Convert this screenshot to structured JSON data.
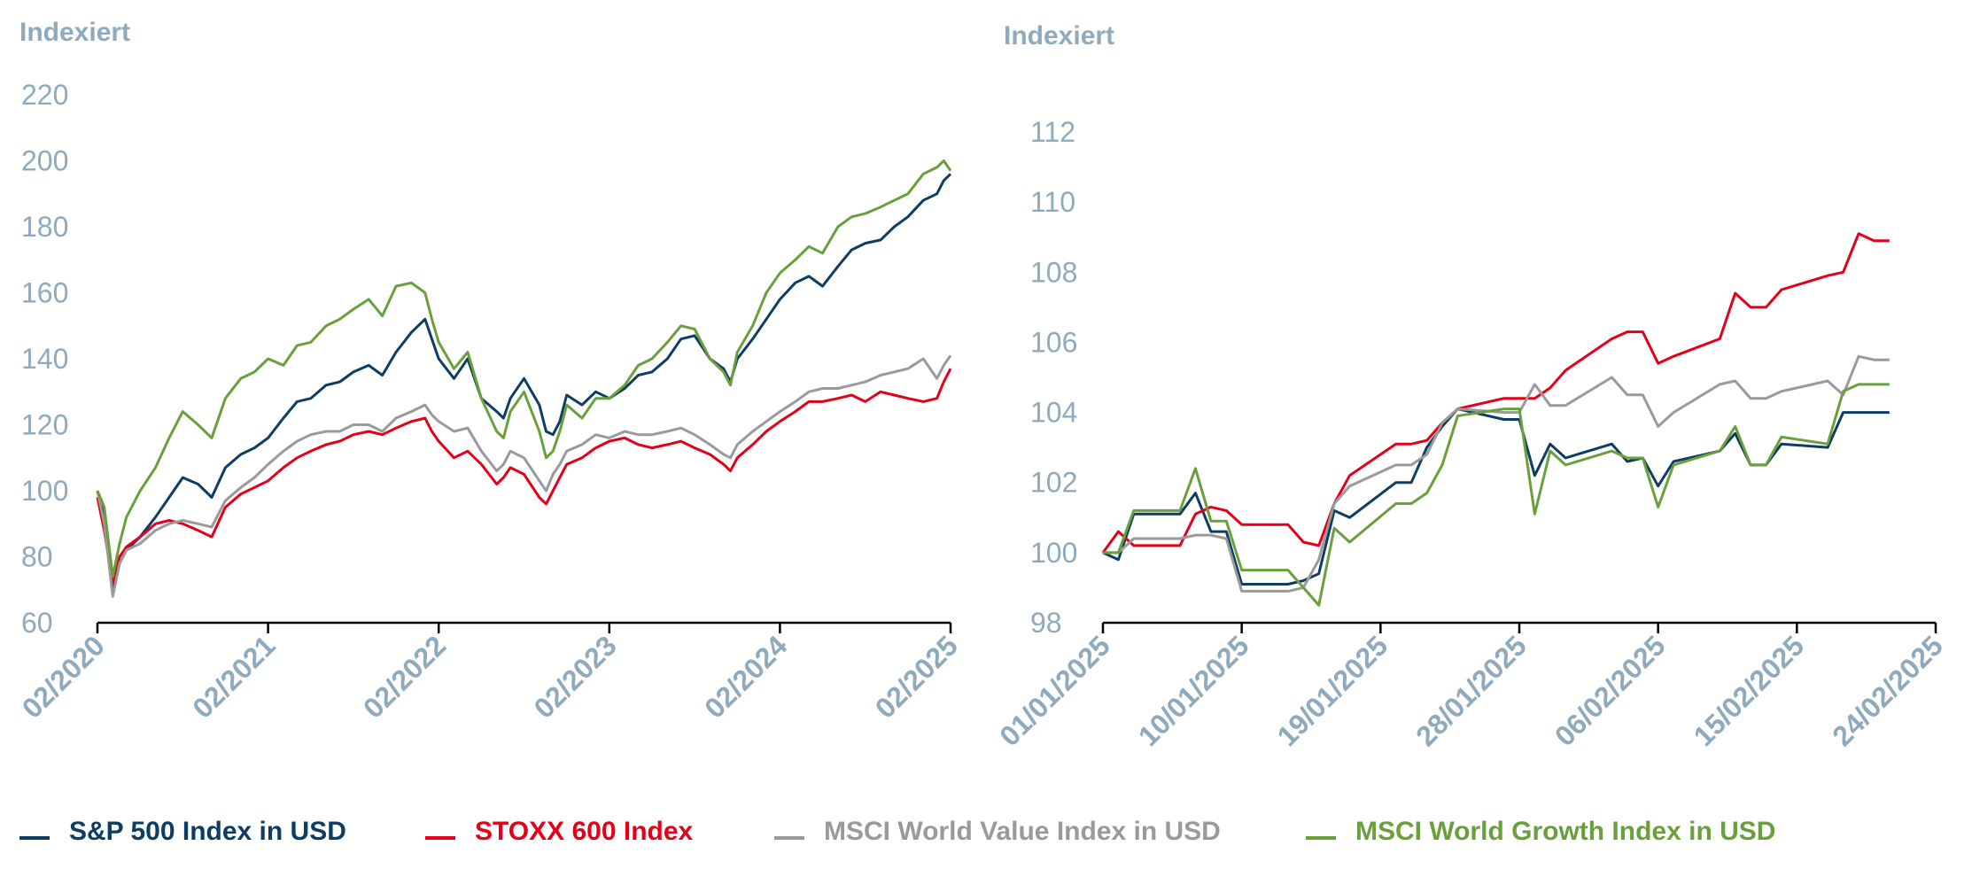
{
  "colors": {
    "sp500": "#0e3d63",
    "stoxx600": "#e2001a",
    "msci_value": "#9a9a9a",
    "msci_growth": "#6aa03c",
    "axis_text": "#8fa9bd",
    "axis_line": "#000000"
  },
  "legend": [
    {
      "key": "sp500",
      "label": "S&P 500 Index in USD"
    },
    {
      "key": "stoxx600",
      "label": "STOXX 600 Index"
    },
    {
      "key": "msci_value",
      "label": "MSCI World Value Index in USD"
    },
    {
      "key": "msci_growth",
      "label": "MSCI World Growth Index in USD"
    }
  ],
  "chart_data": [
    {
      "type": "line",
      "ylabel": "Indexiert",
      "ylim": [
        60,
        220
      ],
      "yticks": [
        60,
        80,
        100,
        120,
        140,
        160,
        180,
        200,
        220
      ],
      "xlim": [
        2020.08,
        2025.08
      ],
      "xtick_labels": [
        "02/2020",
        "02/2021",
        "02/2022",
        "02/2023",
        "02/2024",
        "02/2025"
      ],
      "grid": false,
      "legend_position": "bottom",
      "series": [
        {
          "key": "sp500",
          "name": "S&P 500 Index in USD",
          "x": [
            2020.08,
            2020.12,
            2020.17,
            2020.21,
            2020.25,
            2020.33,
            2020.42,
            2020.5,
            2020.58,
            2020.67,
            2020.75,
            2020.83,
            2020.92,
            2021.0,
            2021.08,
            2021.17,
            2021.25,
            2021.33,
            2021.42,
            2021.5,
            2021.58,
            2021.67,
            2021.75,
            2021.83,
            2021.92,
            2022.0,
            2022.04,
            2022.08,
            2022.17,
            2022.25,
            2022.33,
            2022.42,
            2022.46,
            2022.5,
            2022.58,
            2022.67,
            2022.71,
            2022.75,
            2022.79,
            2022.83,
            2022.92,
            2023.0,
            2023.08,
            2023.17,
            2023.25,
            2023.33,
            2023.42,
            2023.5,
            2023.58,
            2023.67,
            2023.75,
            2023.79,
            2023.83,
            2023.92,
            2024.0,
            2024.08,
            2024.17,
            2024.25,
            2024.33,
            2024.42,
            2024.5,
            2024.58,
            2024.67,
            2024.75,
            2024.83,
            2024.92,
            2025.0,
            2025.04,
            2025.08
          ],
          "y": [
            100,
            92,
            70,
            78,
            82,
            86,
            92,
            98,
            104,
            102,
            98,
            107,
            111,
            113,
            116,
            122,
            127,
            128,
            132,
            133,
            136,
            138,
            135,
            142,
            148,
            152,
            146,
            140,
            134,
            140,
            128,
            124,
            122,
            128,
            134,
            126,
            118,
            117,
            121,
            129,
            126,
            130,
            128,
            131,
            135,
            136,
            140,
            146,
            147,
            140,
            137,
            133,
            140,
            146,
            152,
            158,
            163,
            165,
            162,
            168,
            173,
            175,
            176,
            180,
            183,
            188,
            190,
            194,
            196
          ]
        },
        {
          "key": "stoxx600",
          "name": "STOXX 600 Index",
          "x": [
            2020.08,
            2020.12,
            2020.17,
            2020.21,
            2020.25,
            2020.33,
            2020.42,
            2020.5,
            2020.58,
            2020.67,
            2020.75,
            2020.83,
            2020.92,
            2021.0,
            2021.08,
            2021.17,
            2021.25,
            2021.33,
            2021.42,
            2021.5,
            2021.58,
            2021.67,
            2021.75,
            2021.83,
            2021.92,
            2022.0,
            2022.04,
            2022.08,
            2022.17,
            2022.25,
            2022.33,
            2022.42,
            2022.46,
            2022.5,
            2022.58,
            2022.67,
            2022.71,
            2022.75,
            2022.79,
            2022.83,
            2022.92,
            2023.0,
            2023.08,
            2023.17,
            2023.25,
            2023.33,
            2023.42,
            2023.5,
            2023.58,
            2023.67,
            2023.75,
            2023.79,
            2023.83,
            2023.92,
            2024.0,
            2024.08,
            2024.17,
            2024.25,
            2024.33,
            2024.42,
            2024.5,
            2024.58,
            2024.67,
            2024.75,
            2024.83,
            2024.92,
            2025.0,
            2025.04,
            2025.08
          ],
          "y": [
            98,
            88,
            72,
            80,
            83,
            86,
            90,
            91,
            90,
            88,
            86,
            95,
            99,
            101,
            103,
            107,
            110,
            112,
            114,
            115,
            117,
            118,
            117,
            119,
            121,
            122,
            118,
            115,
            110,
            112,
            108,
            102,
            104,
            107,
            105,
            98,
            96,
            100,
            104,
            108,
            110,
            113,
            115,
            116,
            114,
            113,
            114,
            115,
            113,
            111,
            108,
            106,
            110,
            114,
            118,
            121,
            124,
            127,
            127,
            128,
            129,
            127,
            130,
            129,
            128,
            127,
            128,
            133,
            137
          ]
        },
        {
          "key": "msci_value",
          "name": "MSCI World Value Index in USD",
          "x": [
            2020.08,
            2020.12,
            2020.17,
            2020.21,
            2020.25,
            2020.33,
            2020.42,
            2020.5,
            2020.58,
            2020.67,
            2020.75,
            2020.83,
            2020.92,
            2021.0,
            2021.08,
            2021.17,
            2021.25,
            2021.33,
            2021.42,
            2021.5,
            2021.58,
            2021.67,
            2021.75,
            2021.83,
            2021.92,
            2022.0,
            2022.04,
            2022.08,
            2022.17,
            2022.25,
            2022.33,
            2022.42,
            2022.46,
            2022.5,
            2022.58,
            2022.67,
            2022.71,
            2022.75,
            2022.79,
            2022.83,
            2022.92,
            2023.0,
            2023.08,
            2023.17,
            2023.25,
            2023.33,
            2023.42,
            2023.5,
            2023.58,
            2023.67,
            2023.75,
            2023.79,
            2023.83,
            2023.92,
            2024.0,
            2024.08,
            2024.17,
            2024.25,
            2024.33,
            2024.42,
            2024.5,
            2024.58,
            2024.67,
            2024.75,
            2024.83,
            2024.92,
            2025.0,
            2025.04,
            2025.08
          ],
          "y": [
            100,
            90,
            68,
            78,
            82,
            84,
            88,
            90,
            91,
            90,
            89,
            97,
            101,
            104,
            108,
            112,
            115,
            117,
            118,
            118,
            120,
            120,
            118,
            122,
            124,
            126,
            123,
            121,
            118,
            119,
            112,
            106,
            108,
            112,
            110,
            103,
            100,
            105,
            108,
            112,
            114,
            117,
            116,
            118,
            117,
            117,
            118,
            119,
            117,
            114,
            111,
            110,
            114,
            118,
            121,
            124,
            127,
            130,
            131,
            131,
            132,
            133,
            135,
            136,
            137,
            140,
            134,
            138,
            141
          ]
        },
        {
          "key": "msci_growth",
          "name": "MSCI World Growth Index in USD",
          "x": [
            2020.08,
            2020.12,
            2020.17,
            2020.21,
            2020.25,
            2020.33,
            2020.42,
            2020.5,
            2020.58,
            2020.67,
            2020.75,
            2020.83,
            2020.92,
            2021.0,
            2021.08,
            2021.17,
            2021.25,
            2021.33,
            2021.42,
            2021.5,
            2021.58,
            2021.67,
            2021.75,
            2021.83,
            2021.92,
            2022.0,
            2022.04,
            2022.08,
            2022.17,
            2022.25,
            2022.33,
            2022.42,
            2022.46,
            2022.5,
            2022.58,
            2022.67,
            2022.71,
            2022.75,
            2022.79,
            2022.83,
            2022.92,
            2023.0,
            2023.08,
            2023.17,
            2023.25,
            2023.33,
            2023.42,
            2023.5,
            2023.58,
            2023.67,
            2023.75,
            2023.79,
            2023.83,
            2023.92,
            2024.0,
            2024.08,
            2024.17,
            2024.25,
            2024.33,
            2024.42,
            2024.5,
            2024.58,
            2024.67,
            2024.75,
            2024.83,
            2024.92,
            2025.0,
            2025.04,
            2025.08
          ],
          "y": [
            100,
            95,
            74,
            84,
            92,
            100,
            107,
            116,
            124,
            120,
            116,
            128,
            134,
            136,
            140,
            138,
            144,
            145,
            150,
            152,
            155,
            158,
            153,
            162,
            163,
            160,
            152,
            145,
            137,
            142,
            128,
            118,
            116,
            124,
            130,
            118,
            110,
            112,
            118,
            126,
            122,
            128,
            128,
            132,
            138,
            140,
            145,
            150,
            149,
            140,
            136,
            132,
            142,
            150,
            160,
            166,
            170,
            174,
            172,
            180,
            183,
            184,
            186,
            188,
            190,
            196,
            198,
            200,
            197
          ]
        }
      ]
    },
    {
      "type": "line",
      "ylabel": "Indexiert",
      "ylim": [
        98,
        112
      ],
      "yticks": [
        98,
        100,
        102,
        104,
        106,
        108,
        110,
        112
      ],
      "xlim": [
        "2025-01-01",
        "2025-02-24"
      ],
      "xtick_labels": [
        "01/01/2025",
        "10/01/2025",
        "19/01/2025",
        "28/01/2025",
        "06/02/2025",
        "15/02/2025",
        "24/02/2025"
      ],
      "x": [
        "2025-01-01",
        "2025-01-02",
        "2025-01-03",
        "2025-01-06",
        "2025-01-07",
        "2025-01-08",
        "2025-01-09",
        "2025-01-10",
        "2025-01-13",
        "2025-01-14",
        "2025-01-15",
        "2025-01-16",
        "2025-01-17",
        "2025-01-20",
        "2025-01-21",
        "2025-01-22",
        "2025-01-23",
        "2025-01-24",
        "2025-01-27",
        "2025-01-28",
        "2025-01-29",
        "2025-01-30",
        "2025-01-31",
        "2025-02-03",
        "2025-02-04",
        "2025-02-05",
        "2025-02-06",
        "2025-02-07",
        "2025-02-10",
        "2025-02-11",
        "2025-02-12",
        "2025-02-13",
        "2025-02-14",
        "2025-02-17",
        "2025-02-18",
        "2025-02-19",
        "2025-02-20",
        "2025-02-21"
      ],
      "grid": false,
      "legend_position": "bottom",
      "series": [
        {
          "key": "sp500",
          "name": "S&P 500 Index in USD",
          "y": [
            100.0,
            99.8,
            101.1,
            101.1,
            101.7,
            100.6,
            100.6,
            99.1,
            99.1,
            99.2,
            99.4,
            101.2,
            101.0,
            102.0,
            102.0,
            103.0,
            103.6,
            104.1,
            103.8,
            103.8,
            102.2,
            103.1,
            102.7,
            103.1,
            102.6,
            102.7,
            101.9,
            102.6,
            102.9,
            103.4,
            102.5,
            102.5,
            103.1,
            103.0,
            104.0,
            104.0,
            104.0,
            104.0
          ]
        },
        {
          "key": "stoxx600",
          "name": "STOXX 600 Index",
          "y": [
            100.0,
            100.6,
            100.2,
            100.2,
            101.1,
            101.3,
            101.2,
            100.8,
            100.8,
            100.3,
            100.2,
            101.4,
            102.2,
            103.1,
            103.1,
            103.2,
            103.7,
            104.1,
            104.4,
            104.4,
            104.4,
            104.7,
            105.2,
            106.1,
            106.3,
            106.3,
            105.4,
            105.6,
            106.1,
            107.4,
            107.0,
            107.0,
            107.5,
            107.9,
            108.0,
            109.1,
            108.9,
            108.9
          ]
        },
        {
          "key": "msci_value",
          "name": "MSCI World Value Index in USD",
          "y": [
            100.0,
            100.0,
            100.4,
            100.4,
            100.5,
            100.5,
            100.4,
            98.9,
            98.9,
            99.0,
            99.8,
            101.4,
            101.9,
            102.5,
            102.5,
            102.8,
            103.7,
            104.1,
            104.0,
            104.0,
            104.8,
            104.2,
            104.2,
            105.0,
            104.5,
            104.5,
            103.6,
            104.0,
            104.8,
            104.9,
            104.4,
            104.4,
            104.6,
            104.9,
            104.5,
            105.6,
            105.5,
            105.5
          ]
        },
        {
          "key": "msci_growth",
          "name": "MSCI World Growth Index in USD",
          "y": [
            100.0,
            100.0,
            101.2,
            101.2,
            102.4,
            100.9,
            100.9,
            99.5,
            99.5,
            99.0,
            98.5,
            100.7,
            100.3,
            101.4,
            101.4,
            101.7,
            102.5,
            103.9,
            104.1,
            104.1,
            101.1,
            102.9,
            102.5,
            102.9,
            102.7,
            102.7,
            101.3,
            102.5,
            102.9,
            103.6,
            102.5,
            102.5,
            103.3,
            103.1,
            104.6,
            104.8,
            104.8,
            104.8
          ]
        }
      ]
    }
  ]
}
